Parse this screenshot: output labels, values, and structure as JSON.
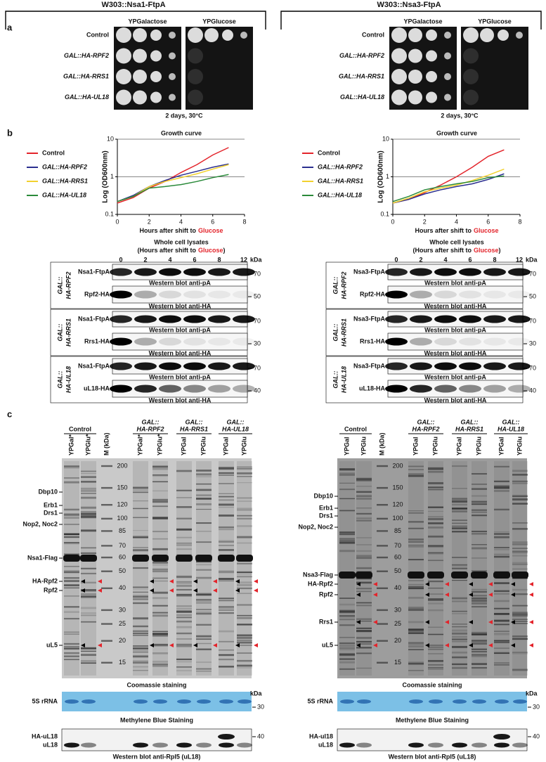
{
  "panel_labels": [
    "a",
    "b",
    "c"
  ],
  "chart_data": [
    {
      "type": "line",
      "title": "Growth curve",
      "ylabel": "Log (OD600nm)",
      "xlabel": "Hours after shift to",
      "xlabel_highlight": "Glucose",
      "x": [
        0,
        1,
        2,
        3,
        4,
        5,
        6,
        7
      ],
      "xlim": [
        0,
        8
      ],
      "xticks": [
        0,
        2,
        4,
        6,
        8
      ],
      "ylim": [
        0.1,
        10
      ],
      "yticks": [
        0.1,
        1,
        10
      ],
      "log_y": true,
      "grid": true,
      "series": [
        {
          "name": "Control",
          "color": "#e3242b",
          "values": [
            0.2,
            0.28,
            0.5,
            0.75,
            1.3,
            2.1,
            3.8,
            6
          ]
        },
        {
          "name": "GAL::HA-RPF2",
          "color": "#2b2f8f",
          "values": [
            0.22,
            0.32,
            0.55,
            0.8,
            1.1,
            1.4,
            1.8,
            2.2
          ]
        },
        {
          "name": "GAL::HA-RRS1",
          "color": "#f2d12e",
          "values": [
            0.22,
            0.3,
            0.55,
            0.75,
            0.95,
            1.2,
            1.6,
            2.1
          ]
        },
        {
          "name": "GAL::HA-UL18",
          "color": "#2a8a3a",
          "values": [
            0.22,
            0.3,
            0.5,
            0.55,
            0.62,
            0.75,
            0.95,
            1.15
          ]
        }
      ]
    },
    {
      "type": "line",
      "title": "Growth curve",
      "ylabel": "Log (OD600nm)",
      "xlabel": "Hours after shift to",
      "xlabel_highlight": "Glucose",
      "x": [
        0,
        1,
        2,
        3,
        4,
        5,
        6,
        7
      ],
      "xlim": [
        0,
        8
      ],
      "xticks": [
        0,
        2,
        4,
        6,
        8
      ],
      "ylim": [
        0.1,
        10
      ],
      "yticks": [
        0.1,
        1,
        10
      ],
      "log_y": true,
      "grid": true,
      "series": [
        {
          "name": "Control",
          "color": "#e3242b",
          "values": [
            0.2,
            0.25,
            0.38,
            0.6,
            1.0,
            1.8,
            3.5,
            5.2
          ]
        },
        {
          "name": "GAL::HA-RPF2",
          "color": "#2b2f8f",
          "values": [
            0.2,
            0.25,
            0.35,
            0.45,
            0.55,
            0.65,
            0.85,
            1.2
          ]
        },
        {
          "name": "GAL::HA-RRS1",
          "color": "#f2d12e",
          "values": [
            0.2,
            0.27,
            0.4,
            0.5,
            0.6,
            0.8,
            1.1,
            1.6
          ]
        },
        {
          "name": "GAL::HA-UL18",
          "color": "#2a8a3a",
          "values": [
            0.22,
            0.3,
            0.45,
            0.55,
            0.65,
            0.75,
            0.95,
            1.05
          ]
        }
      ]
    }
  ],
  "sides": [
    {
      "header": "W303::Nsa1-FtpA",
      "plates": {
        "media": [
          "YPGalactose",
          "YPGlucose"
        ],
        "strains": [
          "Control",
          "GAL::HA-RPF2",
          "GAL::HA-RRS1",
          "GAL::HA-UL18"
        ],
        "caption": "2 days, 30°C"
      },
      "lysates": {
        "title": "Whole cell lysates",
        "subtitle": "(Hours after shift to",
        "subtitle_highlight": "Glucose",
        "subtitle_end": ")",
        "lanes": [
          0,
          2,
          4,
          6,
          8,
          12
        ],
        "unit": "kDa",
        "groups": [
          {
            "label": [
              "GAL::",
              "HA-RPF2"
            ],
            "blots": [
              {
                "protein": "Nsa1-FtpA",
                "caption": "Western blot anti-pA",
                "marker": 70
              },
              {
                "protein": "Rpf2-HA",
                "caption": "Western blot anti-HA",
                "marker": 50
              }
            ]
          },
          {
            "label": [
              "GAL::",
              "HA-RRS1"
            ],
            "blots": [
              {
                "protein": "Nsa1-FtpA",
                "caption": "Western blot anti-pA",
                "marker": 70
              },
              {
                "protein": "Rrs1-HA",
                "caption": "Western blot anti-HA",
                "marker": 30
              }
            ]
          },
          {
            "label": [
              "GAL::",
              "HA-UL18"
            ],
            "blots": [
              {
                "protein": "Nsa1-FtpA",
                "caption": "Western blot anti-pA",
                "marker": 70
              },
              {
                "protein": "uL18-HA",
                "caption": "Western blot anti-HA",
                "marker": 40
              }
            ]
          }
        ]
      },
      "gel": {
        "groups": [
          {
            "label": [
              "Control"
            ],
            "lanes": [
              "YPGal*",
              "YPGlu*"
            ]
          },
          {
            "label": [
              "GAL::",
              "HA-RPF2"
            ],
            "lanes": [
              "YPGal*",
              "YPGlu*"
            ]
          },
          {
            "label": [
              "GAL::",
              "HA-RRS1"
            ],
            "lanes": [
              "YPGal",
              "YPGlu"
            ]
          },
          {
            "label": [
              "GAL::",
              "HA-UL18"
            ],
            "lanes": [
              "YPGal",
              "YPGlu"
            ]
          }
        ],
        "marker_lane": "M (kDa)",
        "markers": [
          200,
          150,
          120,
          100,
          85,
          70,
          60,
          50,
          40,
          30,
          25,
          20,
          15
        ],
        "proteins": [
          {
            "label": "Dbp10"
          },
          {
            "label": "Erb1"
          },
          {
            "label": "Drs1"
          },
          {
            "label": "Nop2, Noc2"
          },
          {
            "label": "Nsa1-Flag"
          },
          {
            "label": "HA-Rpf2",
            "highlight": true
          },
          {
            "label": "Rpf2",
            "highlight": true
          },
          {
            "label": "uL5",
            "highlight": true
          }
        ],
        "caption": "Coomassie staining",
        "rrna": {
          "label": "5S rRNA",
          "caption": "Methylene Blue Staining",
          "marker": 30,
          "unit": "kDa"
        },
        "western": {
          "labels": [
            "HA-uL18",
            "uL18"
          ],
          "caption": "Western blot anti-Rpl5 (uL18)",
          "marker": 40
        }
      }
    },
    {
      "header": "W303::Nsa3-FtpA",
      "plates": {
        "media": [
          "YPGalactose",
          "YPGlucose"
        ],
        "strains": [
          "Control",
          "GAL::HA-RPF2",
          "GAL::HA-RRS1",
          "GAL::HA-UL18"
        ],
        "caption": "2 days, 30°C"
      },
      "lysates": {
        "title": "Whole cell lysates",
        "subtitle": "(Hours after shift to",
        "subtitle_highlight": "Glucose",
        "subtitle_end": ")",
        "lanes": [
          0,
          2,
          4,
          6,
          8,
          12
        ],
        "unit": "kDa",
        "groups": [
          {
            "label": [
              "GAL::",
              "HA-RPF2"
            ],
            "blots": [
              {
                "protein": "Nsa3-FtpA",
                "caption": "Western blot anti-pA",
                "marker": 70
              },
              {
                "protein": "Rpf2-HA",
                "caption": "Western blot anti-HA",
                "marker": 50
              }
            ]
          },
          {
            "label": [
              "GAL::",
              "HA-RRS1"
            ],
            "blots": [
              {
                "protein": "Nsa3-FtpA",
                "caption": "Western blot anti-pA",
                "marker": 70
              },
              {
                "protein": "Rrs1-HA",
                "caption": "Western blot anti-HA",
                "marker": 30
              }
            ]
          },
          {
            "label": [
              "GAL::",
              "HA-UL18"
            ],
            "blots": [
              {
                "protein": "Nsa3-FtpA",
                "caption": "Western blot anti-pA",
                "marker": 70
              },
              {
                "protein": "uL18-HA",
                "caption": "Western blot anti-HA",
                "marker": 40
              }
            ]
          }
        ]
      },
      "gel": {
        "groups": [
          {
            "label": [
              "Control"
            ],
            "lanes": [
              "YPGal",
              "YPGlu"
            ]
          },
          {
            "label": [
              "GAL::",
              "HA-RPF2"
            ],
            "lanes": [
              "YPGal",
              "YPGlu"
            ]
          },
          {
            "label": [
              "GAL::",
              "HA-RRS1"
            ],
            "lanes": [
              "YPGal",
              "YPGlu"
            ]
          },
          {
            "label": [
              "GAL::",
              "HA-UL18"
            ],
            "lanes": [
              "YPGal",
              "YPGlu"
            ]
          }
        ],
        "marker_lane": "M (kDa)",
        "markers": [
          200,
          150,
          120,
          100,
          85,
          70,
          60,
          50,
          40,
          30,
          25,
          20,
          15
        ],
        "proteins": [
          {
            "label": "Dbp10"
          },
          {
            "label": "Erb1"
          },
          {
            "label": "Drs1"
          },
          {
            "label": "Nop2, Noc2"
          },
          {
            "label": "Nsa3-Flag"
          },
          {
            "label": "HA-Rpf2",
            "highlight": true
          },
          {
            "label": "Rpf2",
            "highlight": true
          },
          {
            "label": "Rrs1",
            "highlight": true
          },
          {
            "label": "uL5",
            "highlight": true
          }
        ],
        "caption": "Coomassie staining",
        "rrna": {
          "label": "5S rRNA",
          "caption": "Methylene Blue Staining",
          "marker": 30,
          "unit": "kDa"
        },
        "western": {
          "labels": [
            "HA-ul18",
            "uL18"
          ],
          "caption": "Western blot anti-Rpl5 (uL18)",
          "marker": 40
        }
      }
    }
  ]
}
